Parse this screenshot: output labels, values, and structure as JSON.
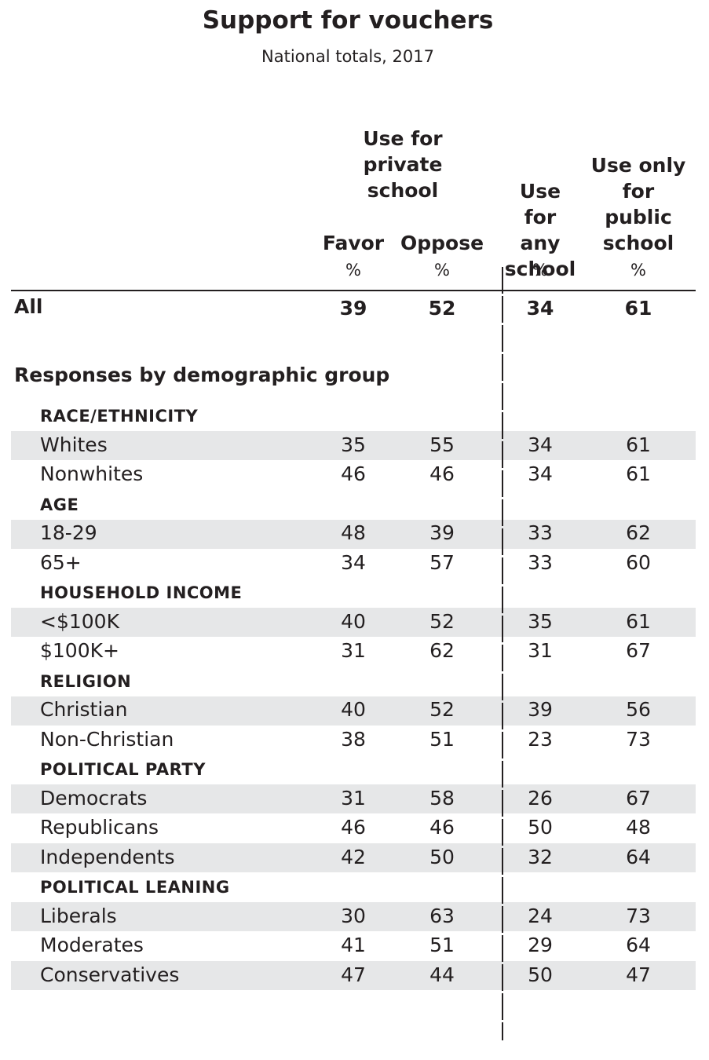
{
  "chart_data": {
    "type": "table",
    "title": "Support for vouchers",
    "subtitle": "National totals, 2017",
    "column_group": "Use for private school",
    "columns": [
      "Favor",
      "Oppose",
      "Use for any school",
      "Use only for public school"
    ],
    "unit": "%",
    "total": {
      "label": "All",
      "values": [
        39,
        52,
        34,
        61
      ]
    },
    "section_heading": "Responses by demographic group",
    "groups": [
      {
        "name": "RACE/ETHNICITY",
        "rows": [
          {
            "label": "Whites",
            "values": [
              35,
              55,
              34,
              61
            ]
          },
          {
            "label": "Nonwhites",
            "values": [
              46,
              46,
              34,
              61
            ]
          }
        ]
      },
      {
        "name": "AGE",
        "rows": [
          {
            "label": "18-29",
            "values": [
              48,
              39,
              33,
              62
            ]
          },
          {
            "label": "65+",
            "values": [
              34,
              57,
              33,
              60
            ]
          }
        ]
      },
      {
        "name": "HOUSEHOLD INCOME",
        "rows": [
          {
            "label": "<$100K",
            "values": [
              40,
              52,
              35,
              61
            ]
          },
          {
            "label": "$100K+",
            "values": [
              31,
              62,
              31,
              67
            ]
          }
        ]
      },
      {
        "name": "RELIGION",
        "rows": [
          {
            "label": "Christian",
            "values": [
              40,
              52,
              39,
              56
            ]
          },
          {
            "label": "Non-Christian",
            "values": [
              38,
              51,
              23,
              73
            ]
          }
        ]
      },
      {
        "name": "POLITICAL PARTY",
        "rows": [
          {
            "label": "Democrats",
            "values": [
              31,
              58,
              26,
              67
            ]
          },
          {
            "label": "Republicans",
            "values": [
              46,
              46,
              50,
              48
            ]
          },
          {
            "label": "Independents",
            "values": [
              42,
              50,
              32,
              64
            ]
          }
        ]
      },
      {
        "name": "POLITICAL LEANING",
        "rows": [
          {
            "label": "Liberals",
            "values": [
              30,
              63,
              24,
              73
            ]
          },
          {
            "label": "Moderates",
            "values": [
              41,
              51,
              29,
              64
            ]
          },
          {
            "label": "Conservatives",
            "values": [
              47,
              44,
              50,
              47
            ]
          }
        ]
      }
    ]
  }
}
